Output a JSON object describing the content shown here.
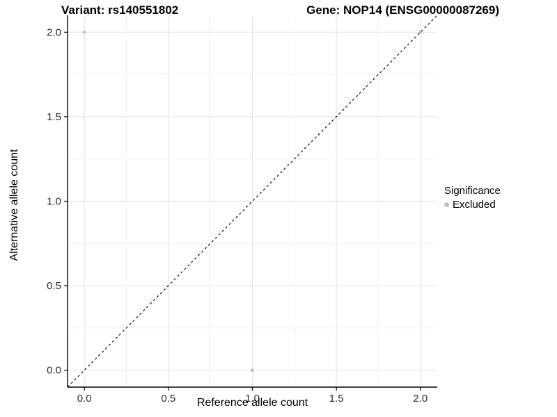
{
  "title": {
    "variant": "Variant: rs140551802",
    "gene": "Gene: NOP14 (ENSG00000087269)"
  },
  "axes": {
    "x_label": "Reference allele count",
    "y_label": "Alternative allele count"
  },
  "legend": {
    "title": "Significance",
    "items": [
      {
        "label": "Excluded",
        "color": "#c0c0c0"
      }
    ]
  },
  "colors": {
    "point": "#c0c0c0",
    "reference_line": "#000000",
    "axis_line": "#000000",
    "tick_text": "#2b2b2b",
    "grid_major": "#e6e6e6",
    "grid_minor": "#f2f2f2",
    "background": "#ffffff"
  },
  "chart_data": {
    "type": "scatter",
    "title": "Variant: rs140551802   Gene: NOP14 (ENSG00000087269)",
    "title_parts": [
      "Variant: rs140551802",
      "Gene: NOP14 (ENSG00000087269)"
    ],
    "xlabel": "Reference allele count",
    "ylabel": "Alternative allele count",
    "xlim": [
      -0.1,
      2.1
    ],
    "ylim": [
      -0.1,
      2.1
    ],
    "x_ticks": [
      0.0,
      0.5,
      1.0,
      1.5,
      2.0
    ],
    "y_ticks": [
      0.0,
      0.5,
      1.0,
      1.5,
      2.0
    ],
    "x_minor_ticks": [
      0.25,
      0.75,
      1.25,
      1.75
    ],
    "y_minor_ticks": [
      0.25,
      0.75,
      1.25,
      1.75
    ],
    "grid": true,
    "legend_position": "right",
    "legend_title": "Significance",
    "series": [
      {
        "name": "Excluded",
        "color": "#c0c0c0",
        "points": [
          [
            0,
            2
          ],
          [
            1,
            0
          ],
          [
            2,
            2
          ]
        ]
      }
    ],
    "reference_line": {
      "kind": "identity",
      "slope": 1,
      "intercept": 0,
      "style": "dashed",
      "color": "#000000"
    }
  }
}
